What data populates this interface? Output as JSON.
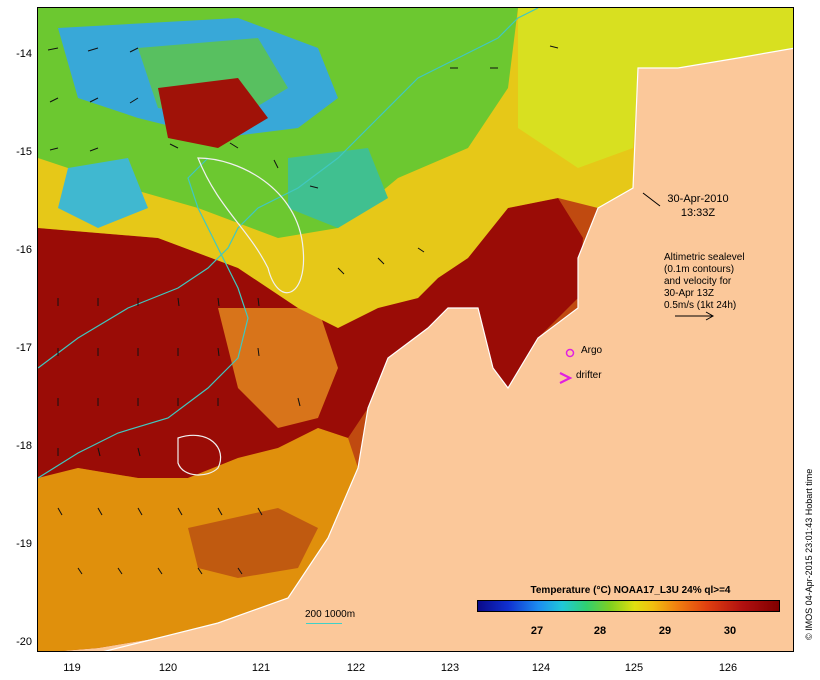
{
  "axes": {
    "y_labels": [
      "-14",
      "-15",
      "-16",
      "-17",
      "-18",
      "-19",
      "-20"
    ],
    "x_labels": [
      "119",
      "120",
      "121",
      "122",
      "123",
      "124",
      "125",
      "126"
    ]
  },
  "annotations": {
    "date_line1": "30-Apr-2010",
    "date_line2": "13:33Z",
    "altimetric": [
      "Altimetric sealevel",
      "(0.1m contours)",
      "and velocity for",
      "30-Apr 13Z",
      "0.5m/s (1kt 24h)"
    ],
    "argo_label": "Argo",
    "drifter_label": "drifter",
    "scale_label": "200 1000m"
  },
  "colorbar": {
    "title": "Temperature (°C) NOAA17_L3U 24% ql>=4",
    "ticks": [
      "27",
      "28",
      "29",
      "30"
    ]
  },
  "credit": "© IMOS 04-Apr-2015 23:01:43 Hobart time",
  "colors": {
    "land": "#fbc89a",
    "warm_sst": "#a01008",
    "mid_sst": "#d86a10",
    "cool_sst": "#e8e020",
    "cloud_green": "#50c840",
    "cloud_blue": "#30b0e0",
    "contour": "#40c8c0",
    "argo": "#e020e0"
  }
}
